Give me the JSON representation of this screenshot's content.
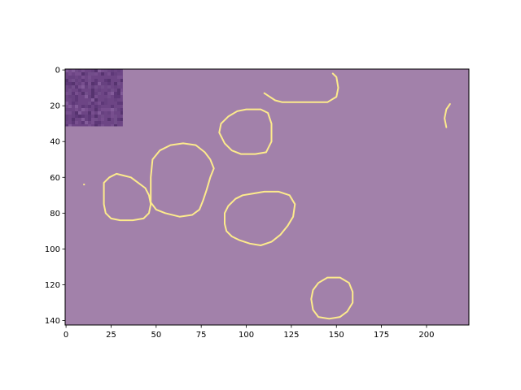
{
  "chart_data": {
    "type": "heatmap",
    "title": "",
    "xlabel": "",
    "ylabel": "",
    "xlim": [
      -0.5,
      223.5
    ],
    "ylim": [
      142.5,
      -0.5
    ],
    "x_ticks": [
      0,
      25,
      50,
      75,
      100,
      125,
      150,
      175,
      200
    ],
    "y_ticks": [
      0,
      20,
      40,
      60,
      80,
      100,
      120,
      140
    ],
    "x_tick_labels": [
      "0",
      "25",
      "50",
      "75",
      "100",
      "125",
      "150",
      "175",
      "200"
    ],
    "y_tick_labels": [
      "0",
      "20",
      "40",
      "60",
      "80",
      "100",
      "120",
      "140"
    ],
    "grid": false,
    "legend": "none",
    "colors": {
      "background_overlay": "#a281aa",
      "contour": "#fdeb8c",
      "inset_base": "#6d4585"
    },
    "inset_patch": {
      "x": [
        0,
        32
      ],
      "y": [
        0,
        32
      ]
    },
    "contours": [
      {
        "points": [
          [
            110,
            13
          ],
          [
            113,
            15
          ],
          [
            116,
            17
          ],
          [
            120,
            18
          ],
          [
            128,
            18
          ],
          [
            138,
            18
          ],
          [
            145,
            18
          ],
          [
            150,
            15
          ],
          [
            151,
            10
          ],
          [
            150,
            4
          ],
          [
            148,
            2
          ]
        ]
      },
      {
        "points": [
          [
            213,
            19
          ],
          [
            211,
            22
          ],
          [
            210,
            27
          ],
          [
            211,
            32
          ]
        ]
      },
      {
        "points": [
          [
            100,
            22
          ],
          [
            108,
            22
          ],
          [
            112,
            24
          ],
          [
            114,
            30
          ],
          [
            114,
            40
          ],
          [
            111,
            46
          ],
          [
            105,
            47
          ],
          [
            97,
            47
          ],
          [
            92,
            45
          ],
          [
            88,
            41
          ],
          [
            85,
            35
          ],
          [
            86,
            30
          ],
          [
            90,
            26
          ],
          [
            95,
            23
          ]
        ]
      },
      {
        "points": [
          [
            65,
            41
          ],
          [
            72,
            42
          ],
          [
            77,
            46
          ],
          [
            80,
            50
          ],
          [
            82,
            55
          ],
          [
            80,
            60
          ],
          [
            78,
            67
          ],
          [
            76,
            73
          ],
          [
            74,
            78
          ],
          [
            70,
            81
          ],
          [
            63,
            82
          ],
          [
            55,
            80
          ],
          [
            50,
            78
          ],
          [
            47,
            74
          ],
          [
            47,
            60
          ],
          [
            48,
            50
          ],
          [
            52,
            45
          ],
          [
            58,
            42
          ]
        ]
      },
      {
        "points": [
          [
            28,
            58
          ],
          [
            32,
            59
          ],
          [
            36,
            60
          ],
          [
            40,
            63
          ],
          [
            44,
            66
          ],
          [
            46,
            70
          ],
          [
            47,
            75
          ],
          [
            46,
            80
          ],
          [
            43,
            83
          ],
          [
            37,
            84
          ],
          [
            30,
            84
          ],
          [
            25,
            83
          ],
          [
            22,
            80
          ],
          [
            21,
            75
          ],
          [
            21,
            68
          ],
          [
            21,
            63
          ],
          [
            24,
            60
          ]
        ]
      },
      {
        "points": [
          [
            110,
            68
          ],
          [
            118,
            68
          ],
          [
            124,
            70
          ],
          [
            127,
            75
          ],
          [
            126,
            82
          ],
          [
            123,
            87
          ],
          [
            119,
            92
          ],
          [
            114,
            96
          ],
          [
            108,
            98
          ],
          [
            102,
            97
          ],
          [
            96,
            95
          ],
          [
            92,
            93
          ],
          [
            89,
            90
          ],
          [
            88,
            86
          ],
          [
            88,
            80
          ],
          [
            90,
            76
          ],
          [
            94,
            72
          ],
          [
            98,
            70
          ],
          [
            104,
            69
          ]
        ]
      },
      {
        "points": [
          [
            145,
            116
          ],
          [
            152,
            116
          ],
          [
            157,
            119
          ],
          [
            159,
            124
          ],
          [
            159,
            130
          ],
          [
            156,
            135
          ],
          [
            152,
            138
          ],
          [
            146,
            139
          ],
          [
            140,
            138
          ],
          [
            137,
            134
          ],
          [
            136,
            128
          ],
          [
            137,
            123
          ],
          [
            140,
            119
          ]
        ]
      },
      {
        "points": [
          [
            10,
            64
          ]
        ]
      }
    ]
  }
}
